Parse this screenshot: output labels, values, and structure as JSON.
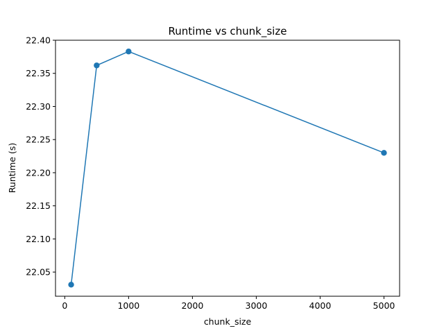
{
  "chart_data": {
    "type": "line",
    "title": "Runtime vs chunk_size",
    "xlabel": "chunk_size",
    "ylabel": "Runtime (s)",
    "xlim": [
      -145,
      5245
    ],
    "ylim": [
      22.0135,
      22.4
    ],
    "xticks": [
      0,
      1000,
      2000,
      3000,
      4000,
      5000
    ],
    "xtick_labels": [
      "0",
      "1000",
      "2000",
      "3000",
      "4000",
      "5000"
    ],
    "yticks": [
      22.05,
      22.1,
      22.15,
      22.2,
      22.25,
      22.3,
      22.35,
      22.4
    ],
    "ytick_labels": [
      "22.05",
      "22.10",
      "22.15",
      "22.20",
      "22.25",
      "22.30",
      "22.35",
      "22.40"
    ],
    "grid": false,
    "series": [
      {
        "color": "#1f77b4",
        "marker": "circle",
        "x": [
          100,
          500,
          1000,
          5000
        ],
        "y": [
          22.031,
          22.362,
          22.383,
          22.23
        ]
      }
    ]
  }
}
